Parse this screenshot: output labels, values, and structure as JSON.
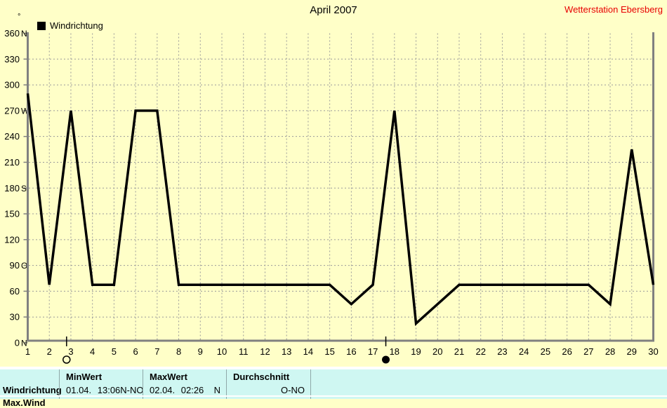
{
  "title": "April 2007",
  "station": "Wetterstation Ebersberg",
  "unit": "°",
  "legend_label": "Windrichtung",
  "colors": {
    "background": "#FFFFC8",
    "table_background": "#CFF7F2",
    "grid": "#9A9A9A",
    "axis": "#808080",
    "line": "#000000",
    "station_text": "#E80000",
    "table_separator": "#8FA8A8",
    "row_divider": "#FFFFFF"
  },
  "chart_data": {
    "type": "line",
    "title": "April 2007",
    "series_name": "Windrichtung",
    "x": [
      1,
      2,
      3,
      4,
      5,
      6,
      7,
      8,
      9,
      10,
      11,
      12,
      13,
      14,
      15,
      16,
      17,
      18,
      19,
      20,
      21,
      22,
      23,
      24,
      25,
      26,
      27,
      28,
      29,
      30
    ],
    "values": [
      290,
      67.5,
      270,
      67.5,
      67.5,
      270,
      270,
      67.5,
      67.5,
      67.5,
      67.5,
      67.5,
      67.5,
      67.5,
      67.5,
      45,
      67.5,
      270,
      22.5,
      45,
      67.5,
      67.5,
      67.5,
      67.5,
      67.5,
      67.5,
      67.5,
      45,
      225,
      67.5
    ],
    "ylim": [
      0,
      360
    ],
    "yticks": [
      {
        "value": 360,
        "dir": "N"
      },
      {
        "value": 330,
        "dir": ""
      },
      {
        "value": 300,
        "dir": ""
      },
      {
        "value": 270,
        "dir": "W"
      },
      {
        "value": 240,
        "dir": ""
      },
      {
        "value": 210,
        "dir": ""
      },
      {
        "value": 180,
        "dir": "S"
      },
      {
        "value": 150,
        "dir": ""
      },
      {
        "value": 120,
        "dir": ""
      },
      {
        "value": 90,
        "dir": "O"
      },
      {
        "value": 60,
        "dir": ""
      },
      {
        "value": 30,
        "dir": ""
      },
      {
        "value": 0,
        "dir": "N"
      }
    ],
    "grid": "dashed",
    "legend_position": "top-left",
    "moon_markers": [
      {
        "day": 2.8,
        "phase": "full-moon"
      },
      {
        "day": 17.6,
        "phase": "new-moon"
      }
    ]
  },
  "table": {
    "row_label": "Windrichtung",
    "min_header": "MinWert",
    "min_datetime": "01.04. 13:06",
    "min_value": "N-NO",
    "max_header": "MaxWert",
    "max_datetime": "02.04. 02:26",
    "max_value": "N",
    "avg_header": "Durchschnitt",
    "avg_value": "O-NO",
    "clipped_next_row_label": "Max.Wind"
  }
}
